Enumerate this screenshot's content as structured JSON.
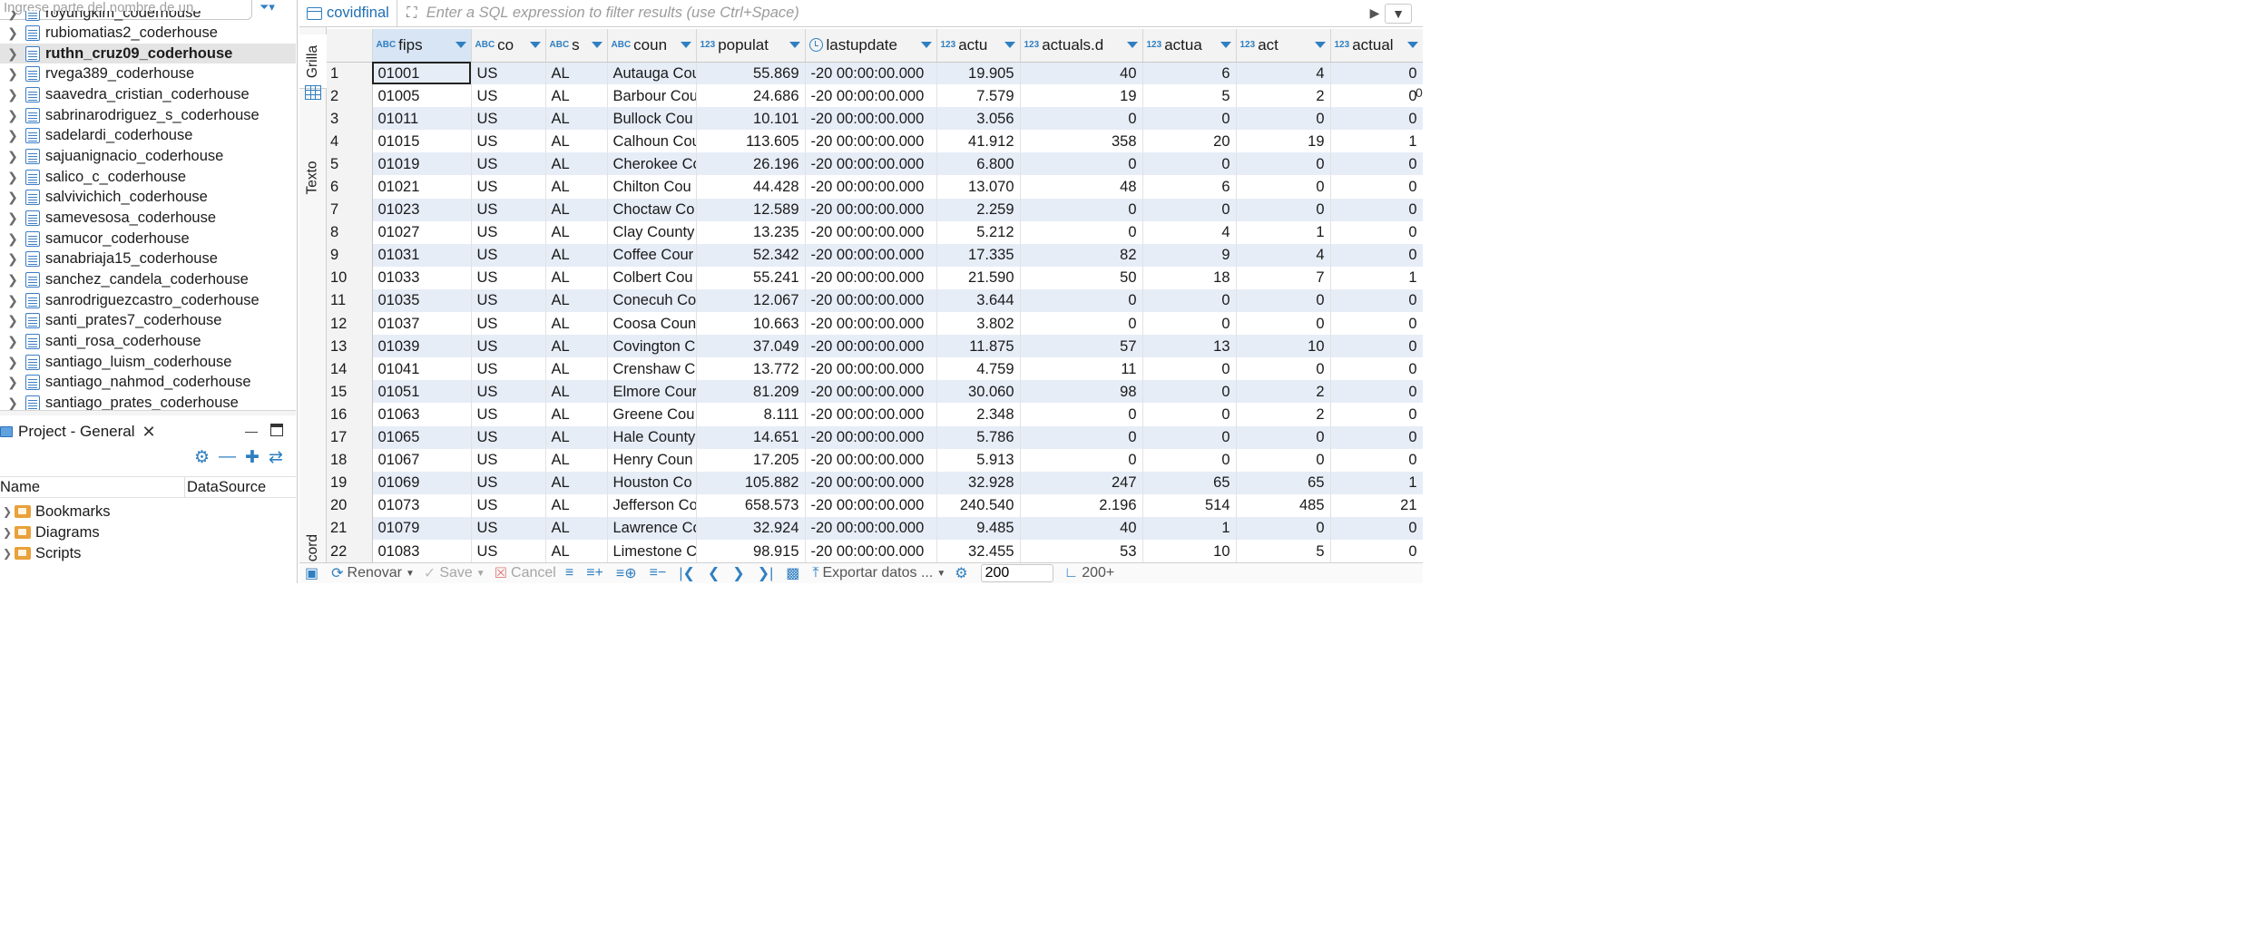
{
  "navigator": {
    "search_placeholder": "Ingrese parte del nombre de un",
    "items": [
      {
        "label": "royungkim_coderhouse"
      },
      {
        "label": "rubiomatias2_coderhouse"
      },
      {
        "label": "ruthn_cruz09_coderhouse",
        "selected": true
      },
      {
        "label": "rvega389_coderhouse"
      },
      {
        "label": "saavedra_cristian_coderhouse"
      },
      {
        "label": "sabrinarodriguez_s_coderhouse"
      },
      {
        "label": "sadelardi_coderhouse"
      },
      {
        "label": "sajuanignacio_coderhouse"
      },
      {
        "label": "salico_c_coderhouse"
      },
      {
        "label": "salvivichich_coderhouse"
      },
      {
        "label": "samevesosa_coderhouse"
      },
      {
        "label": "samucor_coderhouse"
      },
      {
        "label": "sanabriaja15_coderhouse"
      },
      {
        "label": "sanchez_candela_coderhouse"
      },
      {
        "label": "sanrodriguezcastro_coderhouse"
      },
      {
        "label": "santi_prates7_coderhouse"
      },
      {
        "label": "santi_rosa_coderhouse"
      },
      {
        "label": "santiago_luism_coderhouse"
      },
      {
        "label": "santiago_nahmod_coderhouse"
      },
      {
        "label": "santiago_prates_coderhouse"
      }
    ]
  },
  "project": {
    "tab_label": "Project - General",
    "col_name": "Name",
    "col_datasource": "DataSource",
    "items": [
      {
        "label": "Bookmarks"
      },
      {
        "label": "Diagrams"
      },
      {
        "label": "Scripts"
      }
    ]
  },
  "editor": {
    "table_name": "covidfinal",
    "filter_placeholder": "Enter a SQL expression to filter results (use Ctrl+Space)",
    "side_tabs": {
      "grid": "Grilla",
      "text": "Texto",
      "record": "Record"
    },
    "overflow_digit": "0"
  },
  "grid": {
    "columns": [
      {
        "type": "ABC",
        "label": "fips"
      },
      {
        "type": "ABC",
        "label": "co"
      },
      {
        "type": "ABC",
        "label": "s"
      },
      {
        "type": "ABC",
        "label": "coun"
      },
      {
        "type": "123",
        "label": "populat"
      },
      {
        "type": "clock",
        "label": "lastupdate"
      },
      {
        "type": "123",
        "label": "actu"
      },
      {
        "type": "123",
        "label": "actuals.d"
      },
      {
        "type": "123",
        "label": "actua"
      },
      {
        "type": "123",
        "label": "act"
      },
      {
        "type": "123",
        "label": "actual"
      }
    ],
    "rows": [
      [
        "1",
        "01001",
        "US",
        "AL",
        "Autauga Cou",
        "55.869",
        "-20 00:00:00.000",
        "19.905",
        "40",
        "6",
        "4",
        "0"
      ],
      [
        "2",
        "01005",
        "US",
        "AL",
        "Barbour Cou",
        "24.686",
        "-20 00:00:00.000",
        "7.579",
        "19",
        "5",
        "2",
        "0"
      ],
      [
        "3",
        "01011",
        "US",
        "AL",
        "Bullock Cou",
        "10.101",
        "-20 00:00:00.000",
        "3.056",
        "0",
        "0",
        "0",
        "0"
      ],
      [
        "4",
        "01015",
        "US",
        "AL",
        "Calhoun Cou",
        "113.605",
        "-20 00:00:00.000",
        "41.912",
        "358",
        "20",
        "19",
        "1"
      ],
      [
        "5",
        "01019",
        "US",
        "AL",
        "Cherokee Co",
        "26.196",
        "-20 00:00:00.000",
        "6.800",
        "0",
        "0",
        "0",
        "0"
      ],
      [
        "6",
        "01021",
        "US",
        "AL",
        "Chilton Cou",
        "44.428",
        "-20 00:00:00.000",
        "13.070",
        "48",
        "6",
        "0",
        "0"
      ],
      [
        "7",
        "01023",
        "US",
        "AL",
        "Choctaw Co",
        "12.589",
        "-20 00:00:00.000",
        "2.259",
        "0",
        "0",
        "0",
        "0"
      ],
      [
        "8",
        "01027",
        "US",
        "AL",
        "Clay County",
        "13.235",
        "-20 00:00:00.000",
        "5.212",
        "0",
        "4",
        "1",
        "0"
      ],
      [
        "9",
        "01031",
        "US",
        "AL",
        "Coffee Cour",
        "52.342",
        "-20 00:00:00.000",
        "17.335",
        "82",
        "9",
        "4",
        "0"
      ],
      [
        "10",
        "01033",
        "US",
        "AL",
        "Colbert Cou",
        "55.241",
        "-20 00:00:00.000",
        "21.590",
        "50",
        "18",
        "7",
        "1"
      ],
      [
        "11",
        "01035",
        "US",
        "AL",
        "Conecuh Co",
        "12.067",
        "-20 00:00:00.000",
        "3.644",
        "0",
        "0",
        "0",
        "0"
      ],
      [
        "12",
        "01037",
        "US",
        "AL",
        "Coosa Coun",
        "10.663",
        "-20 00:00:00.000",
        "3.802",
        "0",
        "0",
        "0",
        "0"
      ],
      [
        "13",
        "01039",
        "US",
        "AL",
        "Covington C",
        "37.049",
        "-20 00:00:00.000",
        "11.875",
        "57",
        "13",
        "10",
        "0"
      ],
      [
        "14",
        "01041",
        "US",
        "AL",
        "Crenshaw C",
        "13.772",
        "-20 00:00:00.000",
        "4.759",
        "11",
        "0",
        "0",
        "0"
      ],
      [
        "15",
        "01051",
        "US",
        "AL",
        "Elmore Cour",
        "81.209",
        "-20 00:00:00.000",
        "30.060",
        "98",
        "0",
        "2",
        "0"
      ],
      [
        "16",
        "01063",
        "US",
        "AL",
        "Greene Cou",
        "8.111",
        "-20 00:00:00.000",
        "2.348",
        "0",
        "0",
        "2",
        "0"
      ],
      [
        "17",
        "01065",
        "US",
        "AL",
        "Hale County",
        "14.651",
        "-20 00:00:00.000",
        "5.786",
        "0",
        "0",
        "0",
        "0"
      ],
      [
        "18",
        "01067",
        "US",
        "AL",
        "Henry Coun",
        "17.205",
        "-20 00:00:00.000",
        "5.913",
        "0",
        "0",
        "0",
        "0"
      ],
      [
        "19",
        "01069",
        "US",
        "AL",
        "Houston Co",
        "105.882",
        "-20 00:00:00.000",
        "32.928",
        "247",
        "65",
        "65",
        "1"
      ],
      [
        "20",
        "01073",
        "US",
        "AL",
        "Jefferson Co",
        "658.573",
        "-20 00:00:00.000",
        "240.540",
        "2.196",
        "514",
        "485",
        "21"
      ],
      [
        "21",
        "01079",
        "US",
        "AL",
        "Lawrence Co",
        "32.924",
        "-20 00:00:00.000",
        "9.485",
        "40",
        "1",
        "0",
        "0"
      ],
      [
        "22",
        "01083",
        "US",
        "AL",
        "Limestone C",
        "98.915",
        "-20 00:00:00.000",
        "32.455",
        "53",
        "10",
        "5",
        "0"
      ]
    ]
  },
  "toolbar": {
    "refresh_label": "Renovar",
    "save_label": "Save",
    "cancel_label": "Cancel",
    "export_label": "Exportar datos ...",
    "fetch_size": "200",
    "row_count": "200+"
  }
}
